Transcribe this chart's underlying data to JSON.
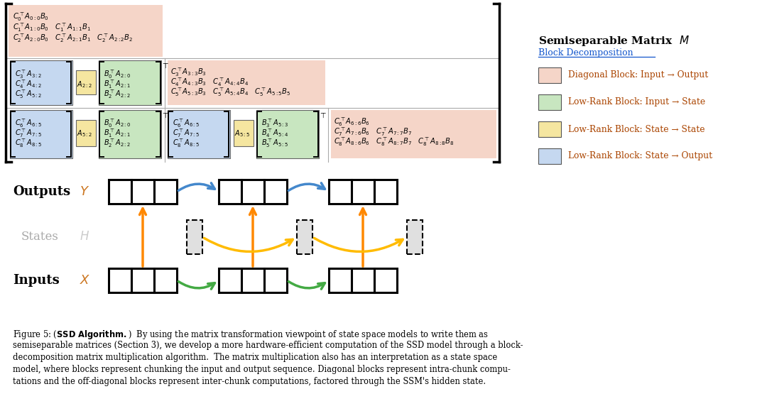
{
  "bg_color": "#ffffff",
  "salmon_color": "#f5d5c8",
  "green_color": "#c8e6c0",
  "yellow_color": "#f5e6a0",
  "blue_color": "#c5d8f0",
  "legend_labels": [
    "Diagonal Block: Input → Output",
    "Low-Rank Block: Input → State",
    "Low-Rank Block: State → State",
    "Low-Rank Block: State → Output"
  ],
  "legend_colors": [
    "#f5d5c8",
    "#c8e6c0",
    "#f5e6a0",
    "#c5d8f0"
  ],
  "caption_bold": "SSD Algorithm.",
  "caption_rest": "  By using the matrix transformation viewpoint of state space models to write them as semiseparable matrices (Section 3), we develop a more hardware-efficient computation of the SSD model through a block-decomposition matrix multiplication algorithm.  The matrix multiplication also has an interpretation as a state space model, where blocks represent chunking the input and output sequence. Diagonal blocks represent intra-chunk computations and the off-diagonal blocks represent inter-chunk computations, factored through the SSM’s hidden state."
}
